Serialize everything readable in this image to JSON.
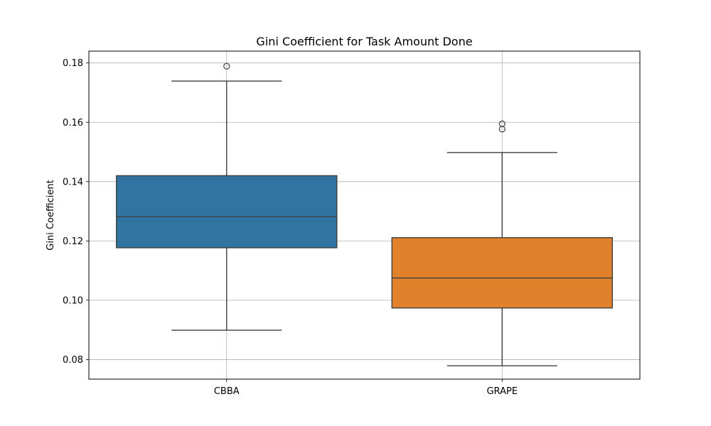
{
  "chart_data": {
    "type": "box",
    "title": "Gini Coefficient for Task Amount Done",
    "xlabel": "",
    "ylabel": "Gini Coefficient",
    "ylim": [
      0.0734,
      0.184
    ],
    "yticks": [
      "0.08",
      "0.10",
      "0.12",
      "0.14",
      "0.16",
      "0.18"
    ],
    "grid": true,
    "categories": [
      "CBBA",
      "GRAPE"
    ],
    "boxes": [
      {
        "category": "CBBA",
        "color": "#3274a1",
        "whisker_low": 0.0899,
        "q1": 0.1177,
        "median": 0.1282,
        "q3": 0.142,
        "whisker_high": 0.1739,
        "outliers": [
          0.1789
        ]
      },
      {
        "category": "GRAPE",
        "color": "#e1812c",
        "whisker_low": 0.0779,
        "q1": 0.0974,
        "median": 0.1075,
        "q3": 0.1211,
        "whisker_high": 0.1498,
        "outliers": [
          0.1595,
          0.1577
        ]
      }
    ]
  }
}
